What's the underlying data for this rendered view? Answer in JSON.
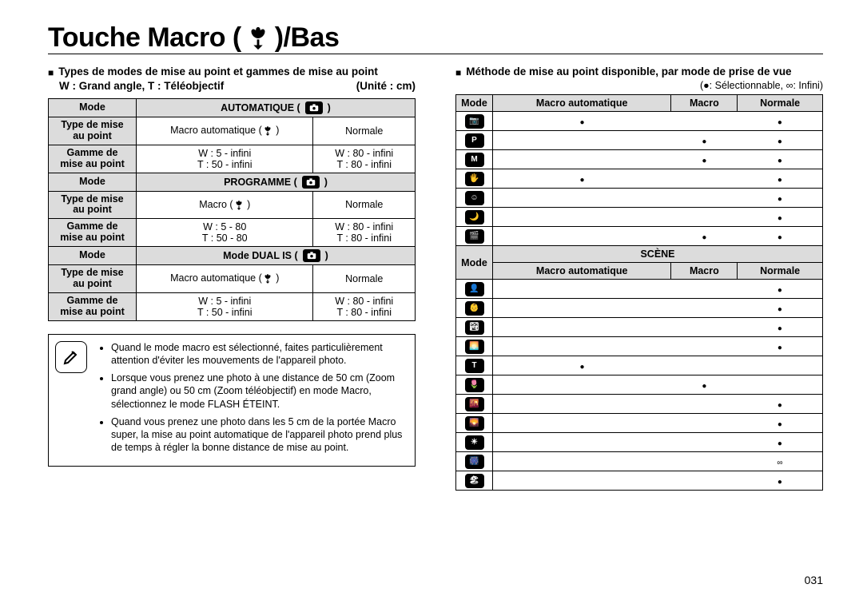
{
  "title_before": "Touche Macro (",
  "title_after": ")/Bas",
  "left": {
    "section_heading": "Types de modes de mise au point et gammes de mise au point",
    "sub_left": "W : Grand angle, T : Téléobjectif",
    "sub_right": "(Unité : cm)",
    "row_mode": "Mode",
    "row_type": "Type de mise\nau point",
    "row_range": "Gamme de\nmise au point",
    "blocks": [
      {
        "header": "AUTOMATIQUE (",
        "header_iconlabel": " )",
        "type_a": "Macro automatique (",
        "type_a_tail": " )",
        "type_b": "Normale",
        "range_a": "W : 5 - infini\nT : 50 - infini",
        "range_b": "W : 80 - infini\nT : 80 - infini"
      },
      {
        "header": "PROGRAMME (",
        "header_iconlabel": " )",
        "type_a": "Macro (",
        "type_a_tail": " )",
        "type_b": "Normale",
        "range_a": "W : 5 - 80\nT : 50 - 80",
        "range_b": "W : 80 - infini\nT : 80 - infini"
      },
      {
        "header": "Mode DUAL IS (",
        "header_iconlabel": " )",
        "type_a": "Macro automatique (",
        "type_a_tail": " )",
        "type_b": "Normale",
        "range_a": "W : 5 - infini\nT : 50 - infini",
        "range_b": "W : 80 - infini\nT : 80 - infini"
      }
    ],
    "notes": [
      "Quand le mode macro est sélectionné, faites particulièrement attention d'éviter les mouvements de l'appareil photo.",
      "Lorsque vous prenez une photo à une distance de 50 cm (Zoom grand angle) ou 50 cm (Zoom téléobjectif) en mode Macro, sélectionnez le mode FLASH ÉTEINT.",
      "Quand vous prenez une photo dans les 5 cm de la portée Macro super, la mise au point automatique de l'appareil photo prend plus de temps à régler la bonne distance de mise au point."
    ]
  },
  "right": {
    "section_heading": "Méthode de mise au point disponible, par mode de prise de vue",
    "legend": "(●: Sélectionnable, ∞: Infini)",
    "th_mode": "Mode",
    "th_macro_auto": "Macro automatique",
    "th_macro": "Macro",
    "th_normal": "Normale",
    "th_scene": "SCÈNE",
    "top_rows": [
      {
        "icon": "📷",
        "ma": "●",
        "m": "",
        "n": "●"
      },
      {
        "icon": "P",
        "ma": "",
        "m": "●",
        "n": "●"
      },
      {
        "icon": "M",
        "ma": "",
        "m": "●",
        "n": "●"
      },
      {
        "icon": "🖐",
        "ma": "●",
        "m": "",
        "n": "●"
      },
      {
        "icon": "☺",
        "ma": "",
        "m": "",
        "n": "●"
      },
      {
        "icon": "🌙",
        "ma": "",
        "m": "",
        "n": "●"
      },
      {
        "icon": "🎬",
        "ma": "",
        "m": "●",
        "n": "●"
      }
    ],
    "scene_rows": [
      {
        "icon": "👤",
        "ma": "",
        "m": "",
        "n": "●"
      },
      {
        "icon": "👶",
        "ma": "",
        "m": "",
        "n": "●"
      },
      {
        "icon": "🏞",
        "ma": "",
        "m": "",
        "n": "●"
      },
      {
        "icon": "🌅",
        "ma": "",
        "m": "",
        "n": "●"
      },
      {
        "icon": "T",
        "ma": "●",
        "m": "",
        "n": ""
      },
      {
        "icon": "🌷",
        "ma": "",
        "m": "●",
        "n": ""
      },
      {
        "icon": "🌇",
        "ma": "",
        "m": "",
        "n": "●"
      },
      {
        "icon": "🌄",
        "ma": "",
        "m": "",
        "n": "●"
      },
      {
        "icon": "☀",
        "ma": "",
        "m": "",
        "n": "●"
      },
      {
        "icon": "🎆",
        "ma": "",
        "m": "",
        "n": "∞"
      },
      {
        "icon": "🏖",
        "ma": "",
        "m": "",
        "n": "●"
      }
    ]
  },
  "page_number": "031",
  "colors": {
    "header_bg": "#dcdcdc",
    "border": "#000000"
  }
}
